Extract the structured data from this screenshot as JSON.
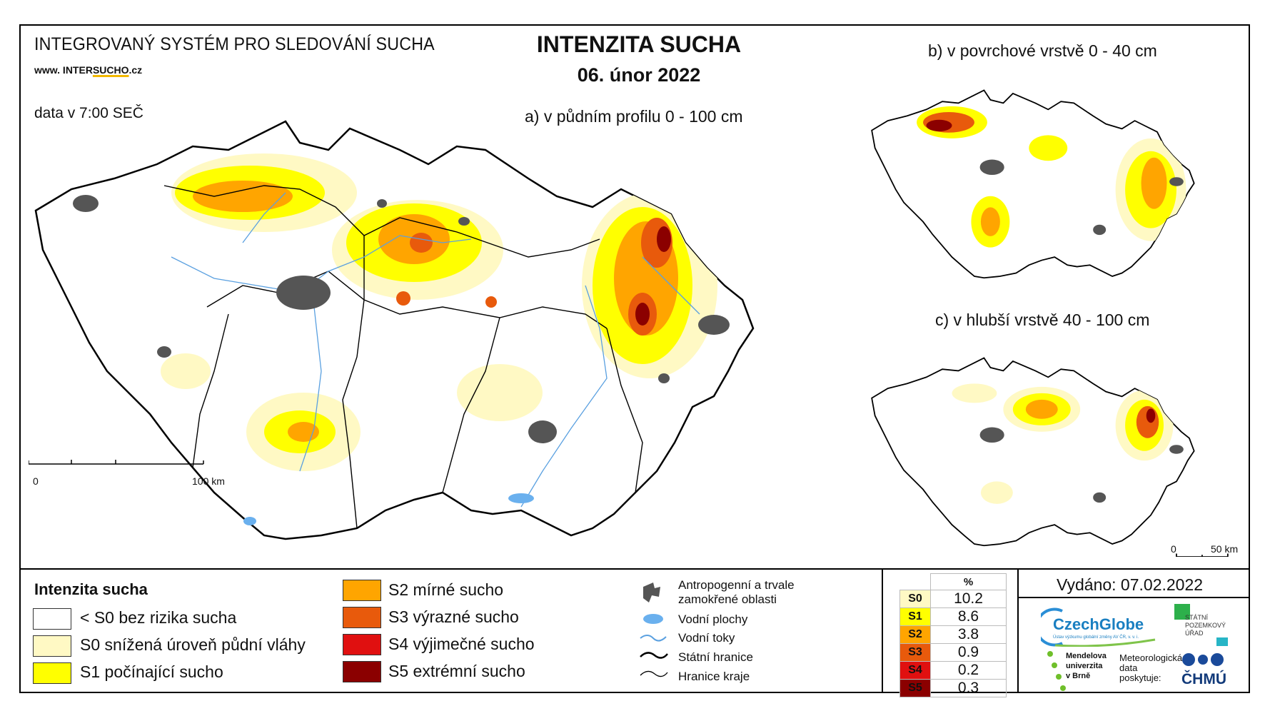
{
  "header": {
    "system_title": "INTEGROVANÝ SYSTÉM PRO SLEDOVÁNÍ SUCHA",
    "website_prefix": "www. INTER",
    "website_highlight": "SUCHO",
    "website_suffix": ".cz",
    "data_time": "data v 7:00 SEČ",
    "main_title": "INTENZITA SUCHA",
    "date": "06. únor 2022"
  },
  "maps": {
    "a_title": "a) v půdním profilu 0 - 100 cm",
    "b_title": "b) v povrchové vrstvě 0 - 40 cm",
    "c_title": "c) v hlubší vrstvě 40 - 100 cm",
    "scale_a": {
      "start": "0",
      "end": "100 km"
    },
    "scale_c": {
      "start": "0",
      "end": "50 km"
    }
  },
  "legend": {
    "title": "Intenzita sucha",
    "classes": [
      {
        "label": "< S0 bez rizika sucha",
        "color": "#ffffff"
      },
      {
        "label": "S0 snížená úroveň půdní vláhy",
        "color": "#fff9c4"
      },
      {
        "label": "S1 počínající sucho",
        "color": "#ffff00"
      },
      {
        "label": "S2 mírné sucho",
        "color": "#ffa500"
      },
      {
        "label": "S3 výrazné sucho",
        "color": "#e85a0c"
      },
      {
        "label": "S4 výjimečné sucho",
        "color": "#e01010"
      },
      {
        "label": "S5 extrémní sucho",
        "color": "#8b0000"
      }
    ],
    "icons": [
      {
        "icon": "urban-area-icon",
        "label": "Antropogenní a trvale zamokřené oblasti"
      },
      {
        "icon": "water-body-icon",
        "label": "Vodní plochy"
      },
      {
        "icon": "river-icon",
        "label": "Vodní toky"
      },
      {
        "icon": "state-border-icon",
        "label": "Státní hranice"
      },
      {
        "icon": "region-border-icon",
        "label": "Hranice kraje"
      }
    ]
  },
  "percent_table": {
    "header": "%",
    "rows": [
      {
        "cls": "S0",
        "value": "10.2",
        "color": "#fff9c4"
      },
      {
        "cls": "S1",
        "value": "8.6",
        "color": "#ffff00"
      },
      {
        "cls": "S2",
        "value": "3.8",
        "color": "#ffa500"
      },
      {
        "cls": "S3",
        "value": "0.9",
        "color": "#e85a0c"
      },
      {
        "cls": "S4",
        "value": "0.2",
        "color": "#e01010"
      },
      {
        "cls": "S5",
        "value": "0.3",
        "color": "#8b0000"
      }
    ]
  },
  "footer": {
    "issued": "Vydáno: 07.02.2022",
    "logo_czechglobe": "CzechGlobe",
    "logo_czechglobe_sub": "Ústav výzkumu globální změny AV ČR, v. v. i.",
    "logo_spu_1": "STÁTNÍ",
    "logo_spu_2": "POZEMKOVÝ",
    "logo_spu_3": "ÚŘAD",
    "logo_mendel_1": "Mendelova",
    "logo_mendel_2": "univerzita",
    "logo_mendel_3": "v Brně",
    "met_1": "Meteorologická",
    "met_2": "data",
    "met_3": "poskytuje:",
    "logo_chmu": "ČHMÚ"
  }
}
